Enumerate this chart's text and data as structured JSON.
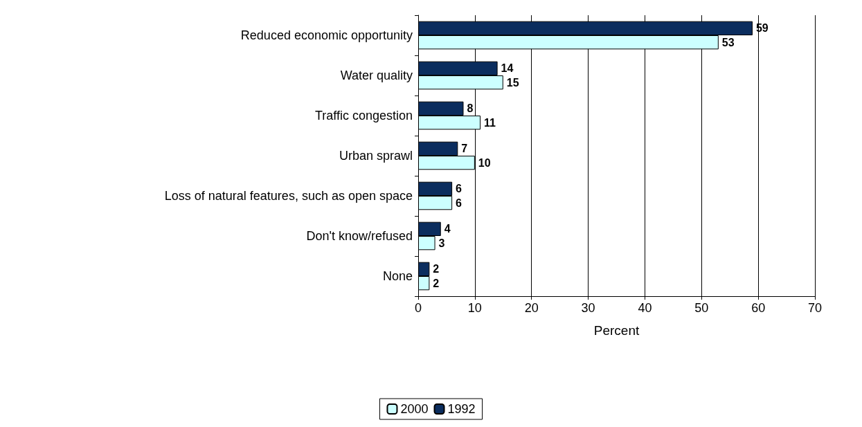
{
  "chart_data": {
    "type": "bar",
    "orientation": "horizontal",
    "xlabel": "Percent",
    "categories": [
      "Reduced economic opportunity",
      "Water quality",
      "Traffic congestion",
      "Urban sprawl",
      "Loss of natural features, such as open space",
      "Don't know/refused",
      "None"
    ],
    "series": [
      {
        "name": "1992",
        "color": "#0b2d5e",
        "values": [
          59,
          14,
          8,
          7,
          6,
          4,
          2
        ]
      },
      {
        "name": "2000",
        "color": "#ccffff",
        "values": [
          53,
          15,
          11,
          10,
          6,
          3,
          2
        ]
      }
    ],
    "xlim": [
      0,
      70
    ],
    "xticks": [
      0,
      10,
      20,
      30,
      40,
      50,
      60,
      70
    ],
    "grid": "x",
    "legend": "bottom",
    "data_labels": true
  }
}
